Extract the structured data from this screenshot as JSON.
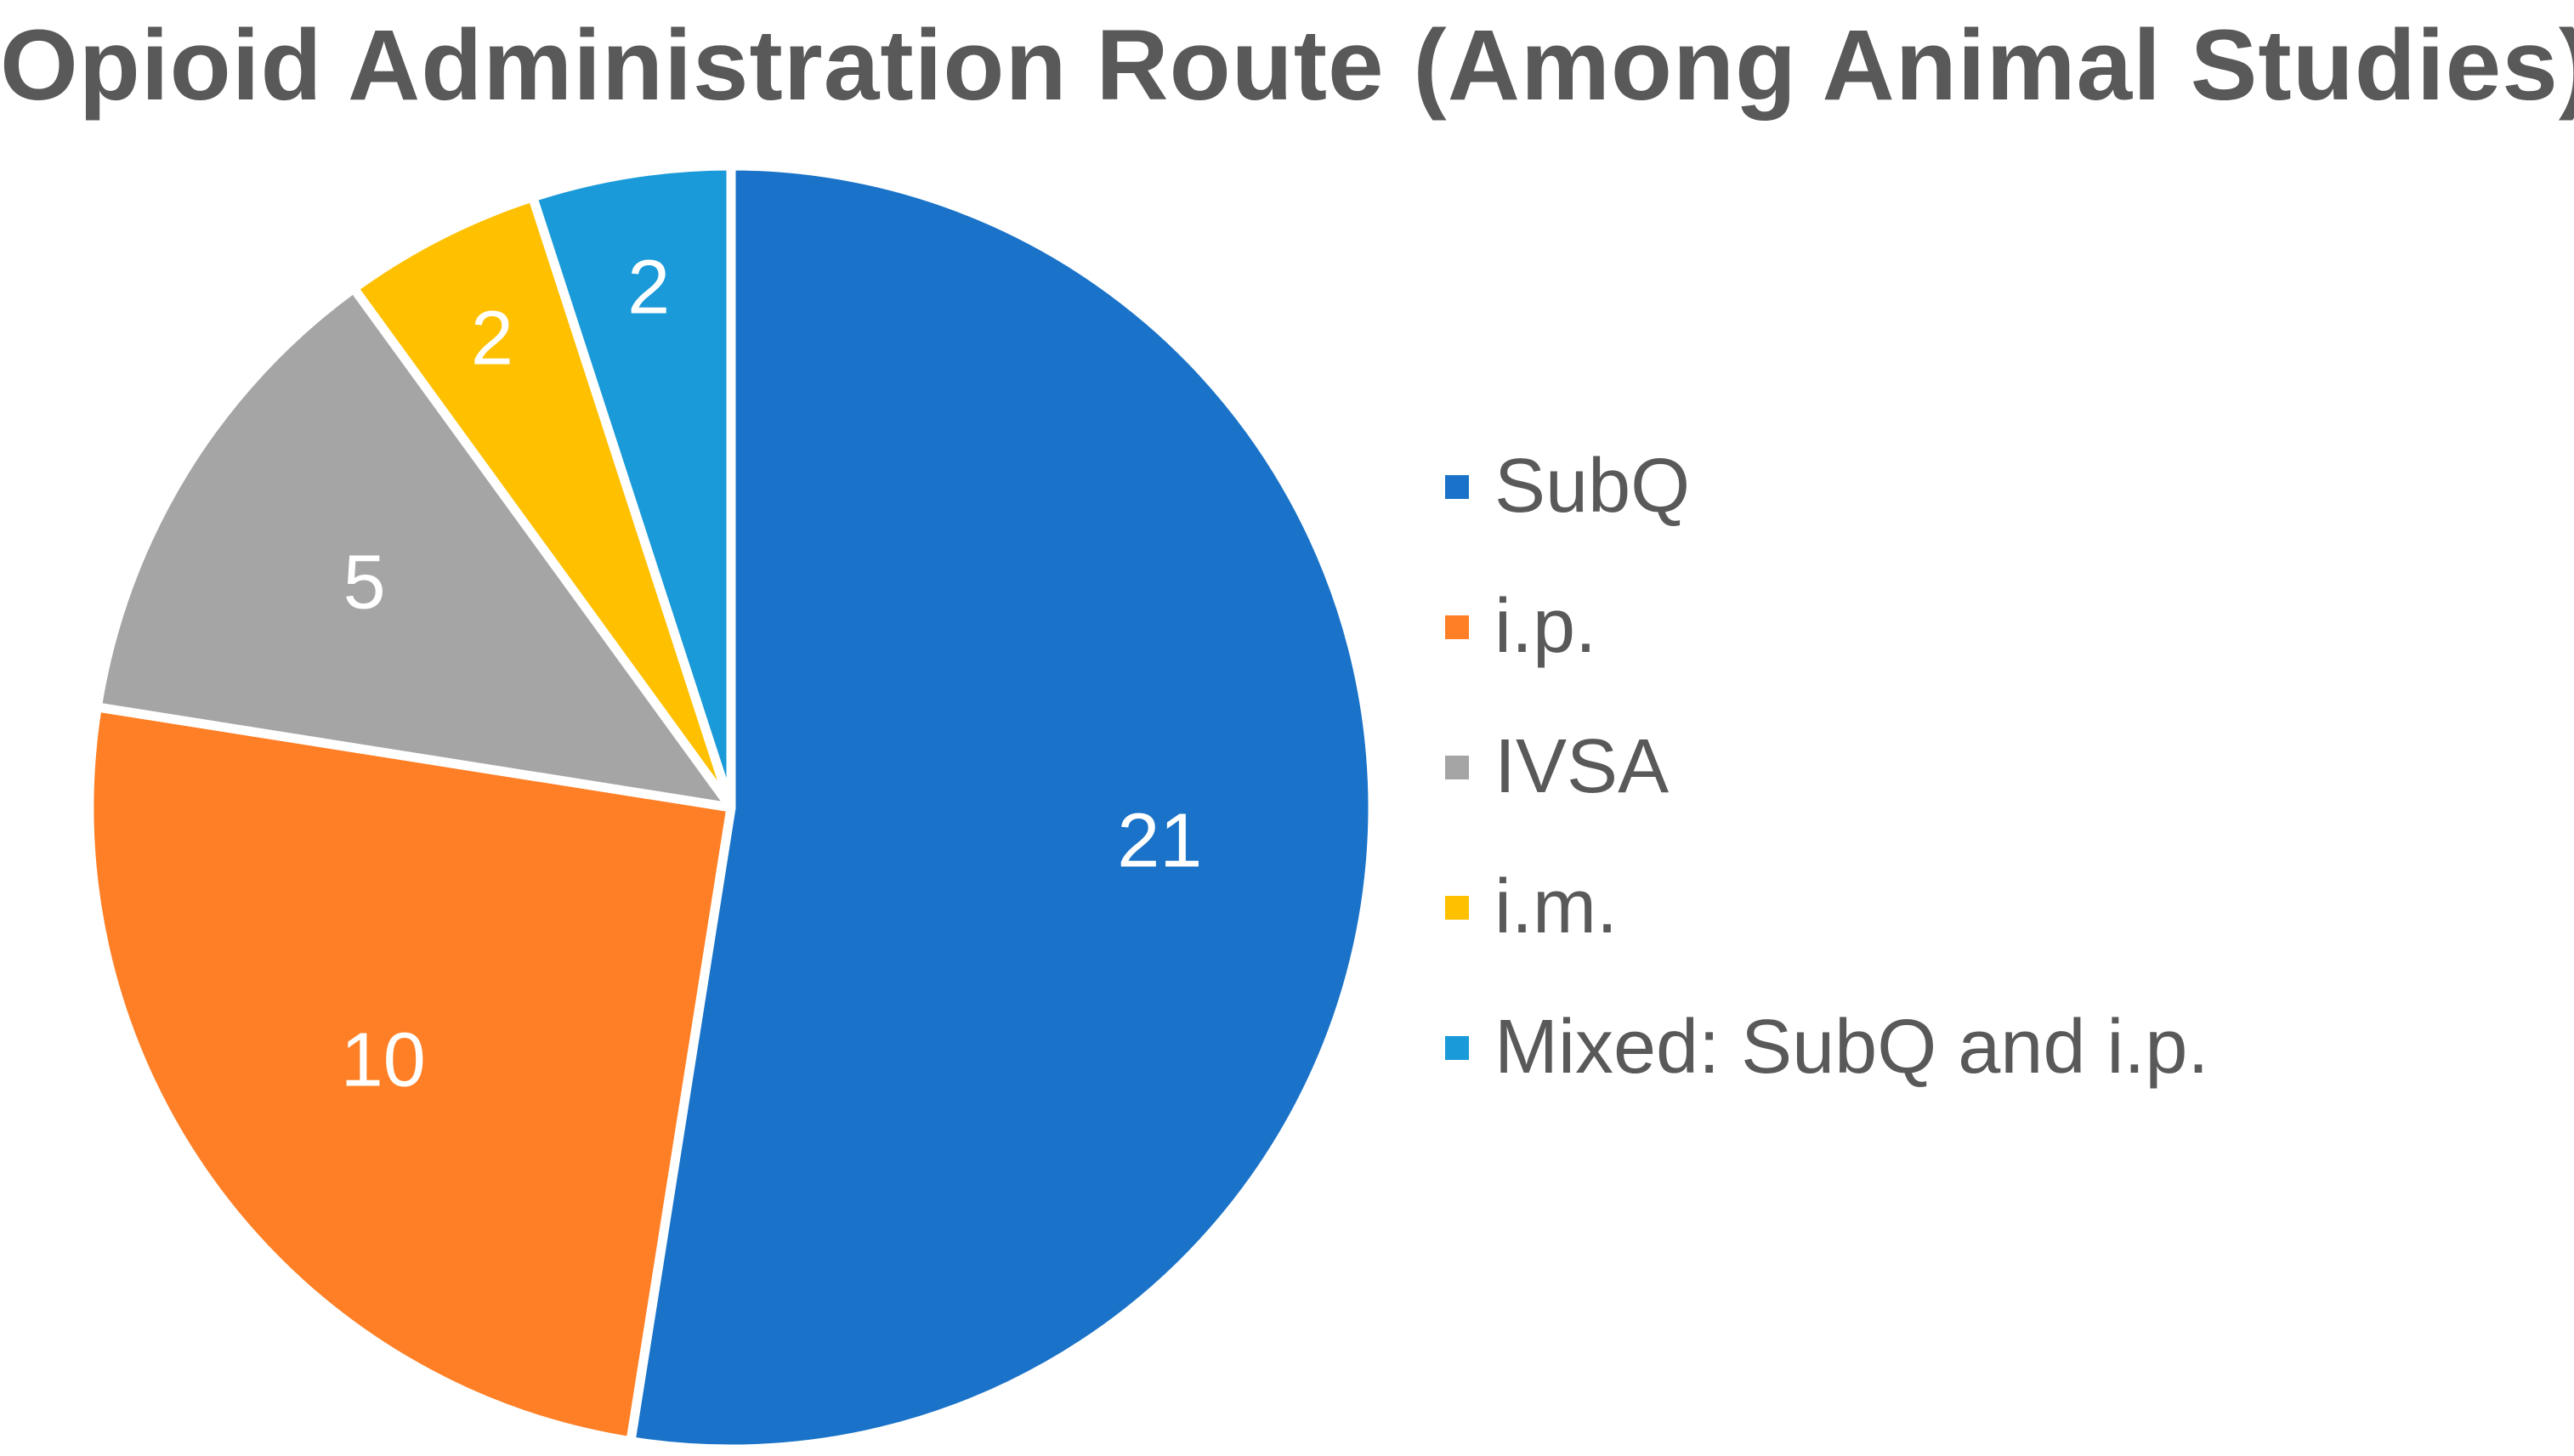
{
  "chart_data": {
    "type": "pie",
    "title": "Opioid Administration Route (Among Animal Studies)",
    "categories": [
      "SubQ",
      "i.p.",
      "IVSA",
      "i.m.",
      "Mixed: SubQ and i.p."
    ],
    "values": [
      21,
      10,
      5,
      2,
      2
    ],
    "data_labels": [
      "21",
      "10",
      "5",
      "2",
      "2"
    ],
    "colors": [
      "#1a73c8",
      "#fe7f25",
      "#a5a5a5",
      "#ffc000",
      "#1a9ad8"
    ],
    "start_angle_deg": 0,
    "direction": "clockwise",
    "legend_position": "right"
  }
}
